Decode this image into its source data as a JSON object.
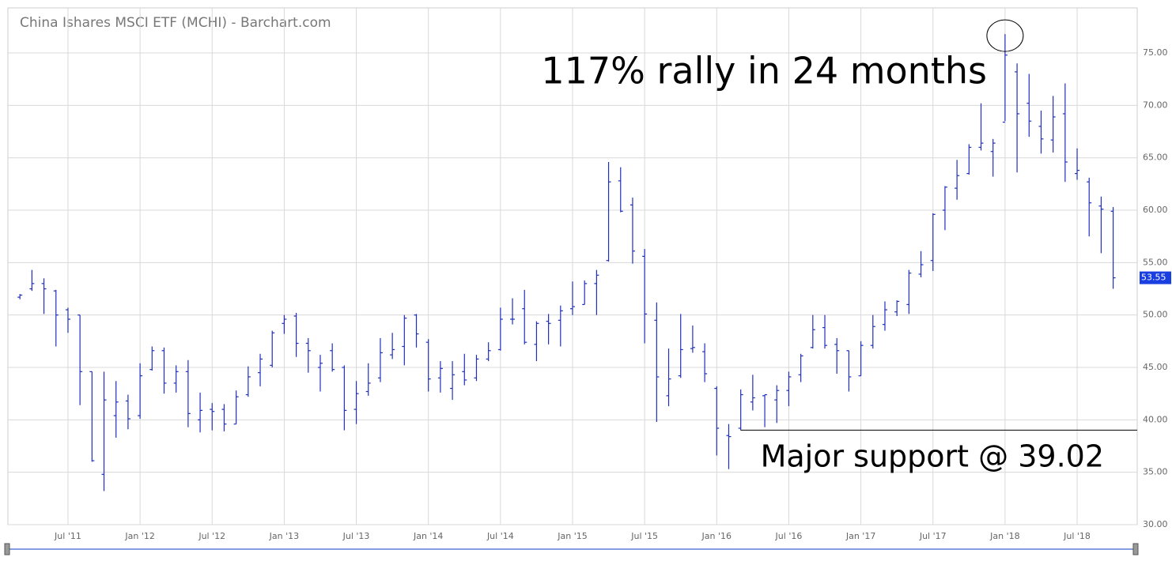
{
  "chart_data": {
    "type": "ohlc",
    "title": "China Ishares MSCI ETF (MCHI) - Barchart.com",
    "x": [
      "2011-03",
      "2011-04",
      "2011-05",
      "2011-06",
      "2011-07",
      "2011-08",
      "2011-09",
      "2011-10",
      "2011-11",
      "2011-12",
      "2012-01",
      "2012-02",
      "2012-03",
      "2012-04",
      "2012-05",
      "2012-06",
      "2012-07",
      "2012-08",
      "2012-09",
      "2012-10",
      "2012-11",
      "2012-12",
      "2013-01",
      "2013-02",
      "2013-03",
      "2013-04",
      "2013-05",
      "2013-06",
      "2013-07",
      "2013-08",
      "2013-09",
      "2013-10",
      "2013-11",
      "2013-12",
      "2014-01",
      "2014-02",
      "2014-03",
      "2014-04",
      "2014-05",
      "2014-06",
      "2014-07",
      "2014-08",
      "2014-09",
      "2014-10",
      "2014-11",
      "2014-12",
      "2015-01",
      "2015-02",
      "2015-03",
      "2015-04",
      "2015-05",
      "2015-06",
      "2015-07",
      "2015-08",
      "2015-09",
      "2015-10",
      "2015-11",
      "2015-12",
      "2016-01",
      "2016-02",
      "2016-03",
      "2016-04",
      "2016-05",
      "2016-06",
      "2016-07",
      "2016-08",
      "2016-09",
      "2016-10",
      "2016-11",
      "2016-12",
      "2017-01",
      "2017-02",
      "2017-03",
      "2017-04",
      "2017-05",
      "2017-06",
      "2017-07",
      "2017-08",
      "2017-09",
      "2017-10",
      "2017-11",
      "2017-12",
      "2018-01",
      "2018-02",
      "2018-03",
      "2018-04",
      "2018-05",
      "2018-06",
      "2018-07",
      "2018-08",
      "2018-09",
      "2018-10"
    ],
    "open": [
      51.7,
      52.5,
      53,
      52.3,
      50.5,
      50,
      44.6,
      34.8,
      40.4,
      41.8,
      40.4,
      44.8,
      46.6,
      43.5,
      44.6,
      40,
      41,
      41,
      39.6,
      42.4,
      44.5,
      45.2,
      49.2,
      49.9,
      47.3,
      45,
      46.6,
      45,
      41,
      42.7,
      44,
      46.2,
      47,
      50,
      47.4,
      44,
      43,
      44.6,
      44,
      45.8,
      46.7,
      49.6,
      50.6,
      47.2,
      49.4,
      49.5,
      50.6,
      51,
      53,
      55.2,
      62.8,
      60.5,
      55.6,
      49.5,
      42.3,
      44.2,
      46.8,
      46.5,
      43,
      38.5,
      39.2,
      41.7,
      42.3,
      41.9,
      42.8,
      44.3,
      46.9,
      48.8,
      47.2,
      46.6,
      44.2,
      47.1,
      49.1,
      50.3,
      51,
      53.9,
      55.2,
      60,
      62.1,
      63.5,
      66,
      65.6,
      68.4,
      73.2,
      70.2,
      68,
      66.7,
      69.2,
      63.5,
      62.7,
      60.4,
      59.9
    ],
    "high": [
      52,
      54.3,
      53.5,
      52.4,
      50.7,
      50,
      44.6,
      44.6,
      43.7,
      42.4,
      45.4,
      47,
      46.9,
      45.2,
      45.7,
      42.6,
      41.6,
      41.5,
      42.8,
      45.1,
      46.3,
      48.5,
      50,
      50.2,
      47.8,
      46.2,
      47.3,
      45.2,
      43.7,
      45.4,
      47.8,
      48.3,
      50,
      50.1,
      47.7,
      45.6,
      45.6,
      46.3,
      46.2,
      47.4,
      50.7,
      51.6,
      52.4,
      49.4,
      50.1,
      50.9,
      53.2,
      53.3,
      54.3,
      64.6,
      64.1,
      61.2,
      56.3,
      51.2,
      46.8,
      50.1,
      49,
      47.3,
      43.2,
      39.6,
      42.9,
      44.3,
      42.4,
      43.3,
      44.6,
      46.3,
      50,
      50,
      47.8,
      46.6,
      47.5,
      50,
      51.3,
      51.4,
      54.3,
      56.1,
      59.7,
      62.3,
      64.8,
      66.3,
      70.2,
      66.8,
      76.8,
      74,
      73,
      69.5,
      70.9,
      72.1,
      65.9,
      63.1,
      61.3,
      60.3
    ],
    "low": [
      51.5,
      52.3,
      50.1,
      47,
      48.3,
      41.4,
      36,
      33.2,
      38.3,
      39.1,
      40.1,
      44.7,
      42.5,
      42.6,
      39.3,
      38.8,
      39,
      38.9,
      39.6,
      42.2,
      43.2,
      45,
      48.2,
      46,
      44.5,
      42.7,
      44.6,
      39,
      39.6,
      42.3,
      43.6,
      45.8,
      45.2,
      46.9,
      42.7,
      42.6,
      41.9,
      43.3,
      43.7,
      45.6,
      46.6,
      49.1,
      47.2,
      45.6,
      47.2,
      47,
      50,
      51,
      50,
      55.1,
      59.8,
      54.9,
      47.3,
      39.8,
      41.3,
      44,
      46.4,
      43.6,
      36.6,
      35.3,
      39,
      40.9,
      39.3,
      39.7,
      41.3,
      43.6,
      46.8,
      46.8,
      44.4,
      42.7,
      44.2,
      46.8,
      48.5,
      49.9,
      50.1,
      53.6,
      54.2,
      58.1,
      61,
      63.4,
      65.7,
      63.2,
      68.5,
      63.6,
      67,
      65.4,
      65.5,
      62.7,
      62.9,
      57.5,
      55.9,
      52.5
    ],
    "close": [
      51.9,
      53,
      52.5,
      50,
      49.6,
      44.6,
      36.1,
      41.9,
      41.7,
      40.1,
      44.2,
      46.6,
      43.5,
      44.6,
      40.6,
      40.9,
      40.8,
      39.6,
      42.2,
      44.1,
      45.8,
      48.3,
      49.6,
      47.3,
      46.6,
      45.4,
      44.8,
      40.9,
      42.5,
      43.5,
      46.4,
      46.7,
      49.7,
      48.2,
      43.9,
      44.9,
      44.3,
      43.8,
      45.8,
      46.6,
      49.6,
      49.6,
      47.4,
      49.2,
      49.2,
      50.4,
      50.8,
      53,
      53.8,
      62.7,
      59.9,
      56.1,
      50.1,
      44.1,
      43.9,
      46.7,
      46.9,
      44.4,
      39.2,
      38.4,
      42.4,
      42.1,
      42.4,
      42.8,
      44.1,
      46.1,
      48.6,
      47.1,
      46.6,
      44.1,
      47.1,
      48.9,
      50.5,
      51.3,
      54,
      54.8,
      59.6,
      62.2,
      63.3,
      66,
      66.4,
      66.4,
      74.8,
      69.2,
      68.5,
      66.8,
      68.9,
      64.6,
      63.8,
      60.7,
      60.1,
      53.55
    ],
    "color": "#1f2fbf",
    "last_label": "53.55",
    "xlim": [
      "2011-02",
      "2018-12"
    ],
    "xticks": [
      {
        "value": "2011-07",
        "label": "Jul '11"
      },
      {
        "value": "2012-01",
        "label": "Jan '12"
      },
      {
        "value": "2012-07",
        "label": "Jul '12"
      },
      {
        "value": "2013-01",
        "label": "Jan '13"
      },
      {
        "value": "2013-07",
        "label": "Jul '13"
      },
      {
        "value": "2014-01",
        "label": "Jan '14"
      },
      {
        "value": "2014-07",
        "label": "Jul '14"
      },
      {
        "value": "2015-01",
        "label": "Jan '15"
      },
      {
        "value": "2015-07",
        "label": "Jul '15"
      },
      {
        "value": "2016-01",
        "label": "Jan '16"
      },
      {
        "value": "2016-07",
        "label": "Jul '16"
      },
      {
        "value": "2017-01",
        "label": "Jan '17"
      },
      {
        "value": "2017-07",
        "label": "Jul '17"
      },
      {
        "value": "2018-01",
        "label": "Jan '18"
      },
      {
        "value": "2018-07",
        "label": "Jul '18"
      }
    ],
    "ylim": [
      30,
      79.3
    ],
    "yticks": [
      {
        "value": 30,
        "label": "30.00"
      },
      {
        "value": 35,
        "label": "35.00"
      },
      {
        "value": 40,
        "label": "40.00"
      },
      {
        "value": 45,
        "label": "45.00"
      },
      {
        "value": 50,
        "label": "50.00"
      },
      {
        "value": 55,
        "label": "55.00"
      },
      {
        "value": 60,
        "label": "60.00"
      },
      {
        "value": 65,
        "label": "65.00"
      },
      {
        "value": 70,
        "label": "70.00"
      },
      {
        "value": 75,
        "label": "75.00"
      }
    ],
    "grid": true,
    "annotation": "117% rally in 24 months",
    "support": {
      "value": 39.02,
      "start": "2016-03",
      "label": "Major support @ 39.02"
    }
  }
}
